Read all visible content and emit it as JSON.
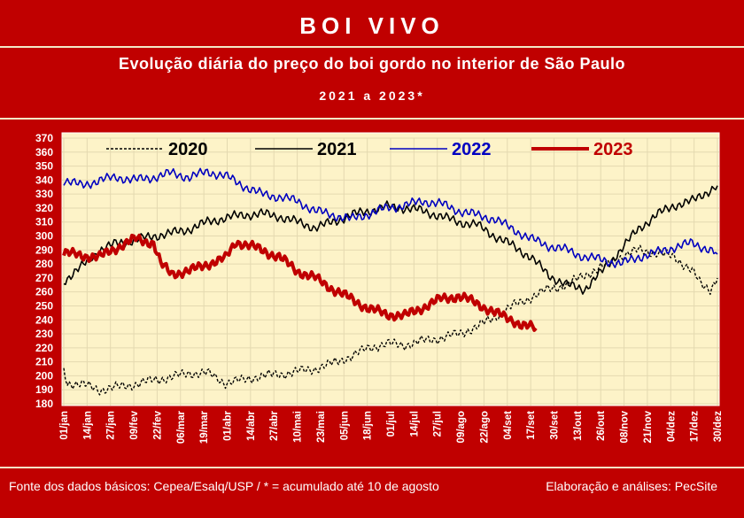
{
  "header": {
    "title": "BOI VIVO",
    "subtitle": "Evolução diária do preço do boi gordo no interior de São Paulo",
    "period": "2021 a 2023*"
  },
  "footer": {
    "source": "Fonte dos dados básicos: Cepea/Esalq/USP   /  * = acumulado até 10 de agosto",
    "credit": "Elaboração e análises: PecSite"
  },
  "colors": {
    "background": "#c00000",
    "plot_bg": "#fdf3c8",
    "s2020": "#000000",
    "s2021": "#000000",
    "s2022": "#0000c0",
    "s2023": "#c00000"
  },
  "chart_data": {
    "type": "line",
    "ylim": [
      180,
      370
    ],
    "yticks": [
      180,
      190,
      200,
      210,
      220,
      230,
      240,
      250,
      260,
      270,
      280,
      290,
      300,
      310,
      320,
      330,
      340,
      350,
      360,
      370
    ],
    "xticks": [
      "01/jan",
      "14/jan",
      "27/jan",
      "09/fev",
      "22/fev",
      "06/mar",
      "19/mar",
      "01/abr",
      "14/abr",
      "27/abr",
      "10/mai",
      "23/mai",
      "05/jun",
      "18/jun",
      "01/jul",
      "14/jul",
      "27/jul",
      "09/ago",
      "22/ago",
      "04/set",
      "17/set",
      "30/set",
      "13/out",
      "26/out",
      "08/nov",
      "21/nov",
      "04/dez",
      "17/dez",
      "30/dez"
    ],
    "grid": true,
    "legend_position": "top",
    "series": [
      {
        "name": "2020",
        "style": "dashed",
        "points": [
          [
            0,
            204
          ],
          [
            2,
            195
          ],
          [
            10,
            194
          ],
          [
            20,
            190
          ],
          [
            30,
            192
          ],
          [
            40,
            194
          ],
          [
            50,
            197
          ],
          [
            60,
            199
          ],
          [
            70,
            202
          ],
          [
            80,
            202
          ],
          [
            90,
            195
          ],
          [
            100,
            197
          ],
          [
            110,
            200
          ],
          [
            120,
            201
          ],
          [
            130,
            203
          ],
          [
            140,
            205
          ],
          [
            150,
            209
          ],
          [
            160,
            214
          ],
          [
            170,
            220
          ],
          [
            180,
            223
          ],
          [
            190,
            222
          ],
          [
            200,
            225
          ],
          [
            210,
            227
          ],
          [
            220,
            230
          ],
          [
            230,
            235
          ],
          [
            240,
            242
          ],
          [
            250,
            250
          ],
          [
            260,
            256
          ],
          [
            270,
            262
          ],
          [
            280,
            265
          ],
          [
            290,
            272
          ],
          [
            300,
            278
          ],
          [
            310,
            285
          ],
          [
            320,
            290
          ],
          [
            330,
            288
          ],
          [
            340,
            285
          ],
          [
            350,
            275
          ],
          [
            355,
            265
          ],
          [
            360,
            262
          ],
          [
            364,
            270
          ]
        ]
      },
      {
        "name": "2021",
        "style": "solid",
        "points": [
          [
            0,
            268
          ],
          [
            10,
            278
          ],
          [
            20,
            290
          ],
          [
            30,
            295
          ],
          [
            40,
            297
          ],
          [
            50,
            300
          ],
          [
            60,
            302
          ],
          [
            70,
            305
          ],
          [
            80,
            310
          ],
          [
            90,
            313
          ],
          [
            100,
            315
          ],
          [
            110,
            316
          ],
          [
            120,
            314
          ],
          [
            130,
            310
          ],
          [
            140,
            306
          ],
          [
            150,
            310
          ],
          [
            160,
            315
          ],
          [
            170,
            318
          ],
          [
            180,
            321
          ],
          [
            190,
            320
          ],
          [
            200,
            318
          ],
          [
            210,
            314
          ],
          [
            220,
            310
          ],
          [
            230,
            308
          ],
          [
            240,
            300
          ],
          [
            250,
            293
          ],
          [
            260,
            285
          ],
          [
            270,
            272
          ],
          [
            280,
            265
          ],
          [
            290,
            262
          ],
          [
            300,
            275
          ],
          [
            310,
            290
          ],
          [
            320,
            305
          ],
          [
            330,
            315
          ],
          [
            340,
            322
          ],
          [
            350,
            325
          ],
          [
            360,
            333
          ],
          [
            364,
            336
          ]
        ]
      },
      {
        "name": "2022",
        "style": "solid",
        "points": [
          [
            0,
            340
          ],
          [
            10,
            336
          ],
          [
            20,
            340
          ],
          [
            30,
            342
          ],
          [
            40,
            340
          ],
          [
            50,
            342
          ],
          [
            60,
            345
          ],
          [
            70,
            342
          ],
          [
            80,
            346
          ],
          [
            90,
            343
          ],
          [
            100,
            336
          ],
          [
            110,
            330
          ],
          [
            120,
            328
          ],
          [
            130,
            325
          ],
          [
            140,
            318
          ],
          [
            150,
            315
          ],
          [
            160,
            312
          ],
          [
            170,
            316
          ],
          [
            180,
            320
          ],
          [
            190,
            322
          ],
          [
            200,
            325
          ],
          [
            210,
            323
          ],
          [
            220,
            318
          ],
          [
            230,
            315
          ],
          [
            240,
            312
          ],
          [
            250,
            305
          ],
          [
            260,
            298
          ],
          [
            270,
            293
          ],
          [
            280,
            290
          ],
          [
            290,
            285
          ],
          [
            300,
            283
          ],
          [
            310,
            280
          ],
          [
            320,
            285
          ],
          [
            330,
            288
          ],
          [
            340,
            292
          ],
          [
            350,
            295
          ],
          [
            360,
            290
          ],
          [
            364,
            287
          ]
        ]
      },
      {
        "name": "2023",
        "style": "thick",
        "points": [
          [
            0,
            288
          ],
          [
            10,
            286
          ],
          [
            20,
            285
          ],
          [
            30,
            292
          ],
          [
            40,
            298
          ],
          [
            50,
            295
          ],
          [
            54,
            280
          ],
          [
            60,
            273
          ],
          [
            70,
            275
          ],
          [
            80,
            280
          ],
          [
            90,
            284
          ],
          [
            96,
            296
          ],
          [
            106,
            292
          ],
          [
            110,
            290
          ],
          [
            120,
            285
          ],
          [
            130,
            275
          ],
          [
            140,
            270
          ],
          [
            150,
            262
          ],
          [
            160,
            255
          ],
          [
            170,
            248
          ],
          [
            180,
            244
          ],
          [
            190,
            243
          ],
          [
            200,
            249
          ],
          [
            210,
            255
          ],
          [
            220,
            257
          ],
          [
            230,
            252
          ],
          [
            240,
            245
          ],
          [
            250,
            240
          ],
          [
            255,
            236
          ],
          [
            263,
            234
          ]
        ]
      }
    ]
  }
}
